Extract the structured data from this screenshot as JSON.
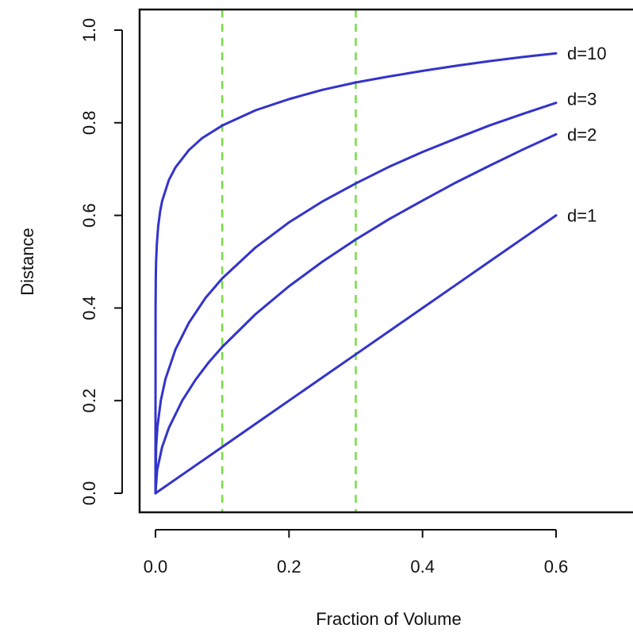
{
  "chart_data": {
    "type": "line",
    "title": "",
    "xlabel": "Fraction of Volume",
    "ylabel": "Distance",
    "xlim": [
      0,
      0.6
    ],
    "ylim": [
      0,
      1.0
    ],
    "x_ticks": [
      0.0,
      0.2,
      0.4,
      0.6
    ],
    "x_tick_labels": [
      "0.0",
      "0.2",
      "0.4",
      "0.6"
    ],
    "y_ticks": [
      0.0,
      0.2,
      0.4,
      0.6,
      0.8,
      1.0
    ],
    "y_tick_labels": [
      "0.0",
      "0.2",
      "0.4",
      "0.6",
      "0.8",
      "1.0"
    ],
    "grid": false,
    "series_color": "#3333cc",
    "reference_line_color": "#77dd44",
    "vertical_reference_lines": [
      0.1,
      0.3
    ],
    "series": [
      {
        "label": "d=1",
        "d": 1,
        "x": [
          0,
          0.05,
          0.1,
          0.15,
          0.2,
          0.25,
          0.3,
          0.35,
          0.4,
          0.45,
          0.5,
          0.55,
          0.6
        ],
        "y": [
          0,
          0.05,
          0.1,
          0.15,
          0.2,
          0.25,
          0.3,
          0.35,
          0.4,
          0.45,
          0.5,
          0.55,
          0.6
        ]
      },
      {
        "label": "d=2",
        "d": 2,
        "x": [
          0,
          0.0025,
          0.01,
          0.02,
          0.04,
          0.06,
          0.08,
          0.1,
          0.15,
          0.2,
          0.25,
          0.3,
          0.35,
          0.4,
          0.45,
          0.5,
          0.55,
          0.6
        ],
        "y": [
          0,
          0.05,
          0.1,
          0.141,
          0.2,
          0.245,
          0.283,
          0.316,
          0.387,
          0.447,
          0.5,
          0.548,
          0.592,
          0.632,
          0.671,
          0.707,
          0.742,
          0.775
        ]
      },
      {
        "label": "d=3",
        "d": 3,
        "x": [
          0,
          0.001,
          0.003,
          0.008,
          0.015,
          0.03,
          0.05,
          0.075,
          0.1,
          0.15,
          0.2,
          0.25,
          0.3,
          0.35,
          0.4,
          0.45,
          0.5,
          0.55,
          0.6
        ],
        "y": [
          0,
          0.1,
          0.144,
          0.2,
          0.247,
          0.311,
          0.368,
          0.422,
          0.464,
          0.531,
          0.585,
          0.63,
          0.669,
          0.705,
          0.737,
          0.766,
          0.794,
          0.819,
          0.843
        ]
      },
      {
        "label": "d=10",
        "d": 10,
        "x": [
          0,
          0.0001,
          0.0005,
          0.001,
          0.002,
          0.004,
          0.007,
          0.01,
          0.02,
          0.03,
          0.05,
          0.07,
          0.1,
          0.15,
          0.2,
          0.25,
          0.3,
          0.35,
          0.4,
          0.45,
          0.5,
          0.55,
          0.6
        ],
        "y": [
          0,
          0.398,
          0.468,
          0.501,
          0.537,
          0.576,
          0.609,
          0.631,
          0.676,
          0.704,
          0.741,
          0.767,
          0.794,
          0.827,
          0.851,
          0.871,
          0.887,
          0.9,
          0.912,
          0.923,
          0.933,
          0.942,
          0.95
        ]
      }
    ]
  }
}
